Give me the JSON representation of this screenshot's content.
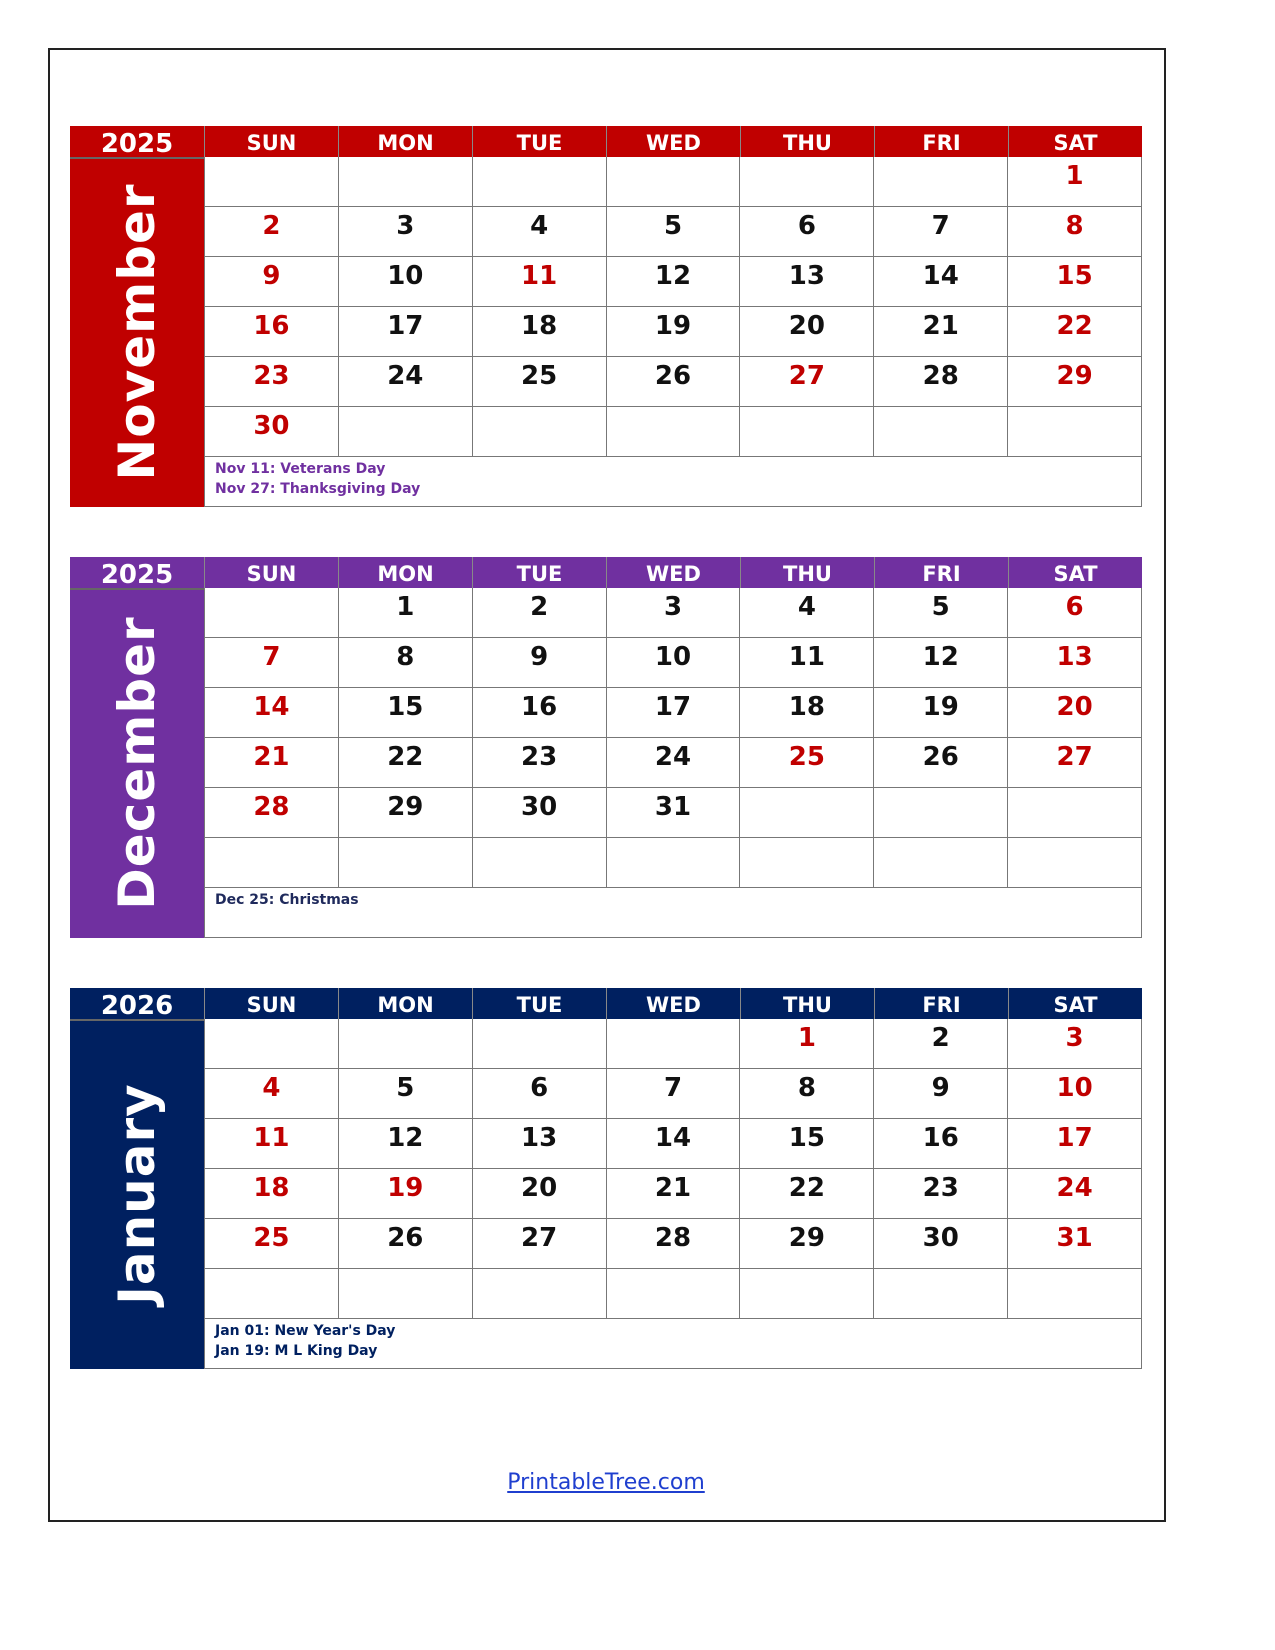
{
  "days": [
    "SUN",
    "MON",
    "TUE",
    "WED",
    "THU",
    "FRI",
    "SAT"
  ],
  "colors": {
    "weekend_red": "#c00000"
  },
  "months": [
    {
      "year": "2025",
      "name": "November",
      "color": "#c00000",
      "note_color": "#7030a0",
      "holidays": [
        11,
        27
      ],
      "weeks": [
        [
          null,
          null,
          null,
          null,
          null,
          null,
          1
        ],
        [
          2,
          3,
          4,
          5,
          6,
          7,
          8
        ],
        [
          9,
          10,
          11,
          12,
          13,
          14,
          15
        ],
        [
          16,
          17,
          18,
          19,
          20,
          21,
          22
        ],
        [
          23,
          24,
          25,
          26,
          27,
          28,
          29
        ],
        [
          30,
          null,
          null,
          null,
          null,
          null,
          null
        ]
      ],
      "notes": [
        "Nov 11: Veterans Day",
        "Nov 27: Thanksgiving Day"
      ]
    },
    {
      "year": "2025",
      "name": "December",
      "color": "#7030a0",
      "note_color": "#1f2a5c",
      "holidays": [
        25
      ],
      "weeks": [
        [
          null,
          1,
          2,
          3,
          4,
          5,
          6
        ],
        [
          7,
          8,
          9,
          10,
          11,
          12,
          13
        ],
        [
          14,
          15,
          16,
          17,
          18,
          19,
          20
        ],
        [
          21,
          22,
          23,
          24,
          25,
          26,
          27
        ],
        [
          28,
          29,
          30,
          31,
          null,
          null,
          null
        ],
        [
          null,
          null,
          null,
          null,
          null,
          null,
          null
        ]
      ],
      "notes": [
        "Dec 25: Christmas"
      ]
    },
    {
      "year": "2026",
      "name": "January",
      "color": "#002060",
      "note_color": "#002060",
      "holidays": [
        1,
        19
      ],
      "weeks": [
        [
          null,
          null,
          null,
          null,
          1,
          2,
          3
        ],
        [
          4,
          5,
          6,
          7,
          8,
          9,
          10
        ],
        [
          11,
          12,
          13,
          14,
          15,
          16,
          17
        ],
        [
          18,
          19,
          20,
          21,
          22,
          23,
          24
        ],
        [
          25,
          26,
          27,
          28,
          29,
          30,
          31
        ],
        [
          null,
          null,
          null,
          null,
          null,
          null,
          null
        ]
      ],
      "notes": [
        "Jan 01: New Year's Day",
        "Jan 19: M L King Day"
      ]
    }
  ],
  "footer": {
    "link": "PrintableTree.com"
  }
}
